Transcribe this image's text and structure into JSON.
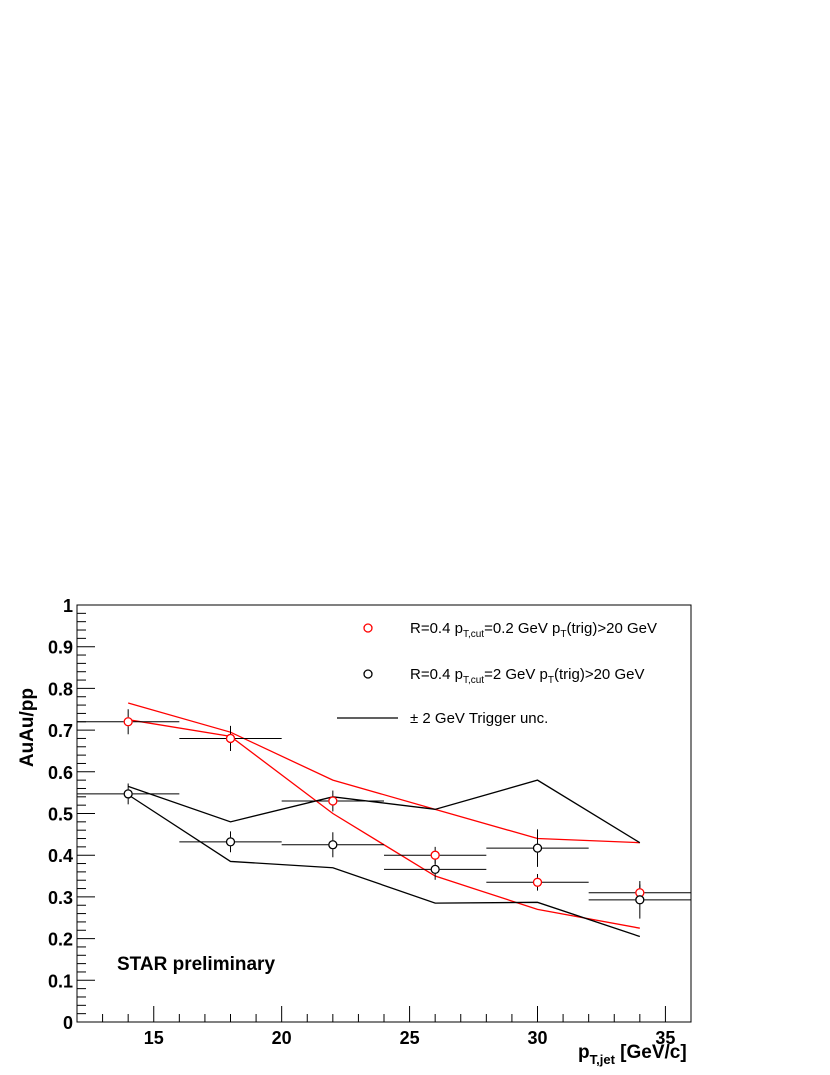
{
  "chart_data": {
    "type": "scatter",
    "xlabel": {
      "main": "p",
      "sub": "T,jet",
      "unit": " [GeV/c]"
    },
    "ylabel": "AuAu/pp",
    "xlim": [
      12,
      36
    ],
    "ylim": [
      0,
      1
    ],
    "x_tick_labels": [
      "15",
      "20",
      "25",
      "30",
      "35"
    ],
    "y_tick_labels": [
      "0",
      "0.1",
      "0.2",
      "0.3",
      "0.4",
      "0.5",
      "0.6",
      "0.7",
      "0.8",
      "0.9",
      "1"
    ],
    "annotation": "STAR preliminary",
    "legend": [
      {
        "marker": "circle",
        "color": "#ff0000",
        "parts": [
          "R=0.4 p",
          "T,cut",
          "=0.2 GeV p",
          "T",
          "(trig)>20 GeV"
        ]
      },
      {
        "marker": "circle",
        "color": "#000000",
        "parts": [
          "R=0.4 p",
          "T,cut",
          "=2 GeV p",
          "T",
          "(trig)>20 GeV"
        ]
      },
      {
        "marker": "line",
        "color": "#000000",
        "parts": [
          "± 2 GeV Trigger unc."
        ]
      }
    ],
    "series": [
      {
        "color": "#ff0000",
        "points": [
          {
            "x": 14,
            "y": 0.72,
            "xerr": 2,
            "yerr": 0.03
          },
          {
            "x": 18,
            "y": 0.68,
            "xerr": 2,
            "yerr": 0.03
          },
          {
            "x": 22,
            "y": 0.53,
            "xerr": 2,
            "yerr": 0.025
          },
          {
            "x": 26,
            "y": 0.4,
            "xerr": 2,
            "yerr": 0.02
          },
          {
            "x": 30,
            "y": 0.335,
            "xerr": 2,
            "yerr": 0.02
          },
          {
            "x": 34,
            "y": 0.31,
            "xerr": 2,
            "yerr": 0.02
          }
        ],
        "band_upper": [
          [
            14,
            0.765
          ],
          [
            18,
            0.695
          ],
          [
            22,
            0.58
          ],
          [
            26,
            0.51
          ],
          [
            30,
            0.44
          ],
          [
            34,
            0.43
          ]
        ],
        "band_lower": [
          [
            14,
            0.725
          ],
          [
            18,
            0.685
          ],
          [
            22,
            0.5
          ],
          [
            26,
            0.35
          ],
          [
            30,
            0.27
          ],
          [
            34,
            0.225
          ]
        ]
      },
      {
        "color": "#000000",
        "points": [
          {
            "x": 14,
            "y": 0.547,
            "xerr": 2,
            "yerr": 0.025
          },
          {
            "x": 18,
            "y": 0.432,
            "xerr": 2,
            "yerr": 0.025
          },
          {
            "x": 22,
            "y": 0.425,
            "xerr": 2,
            "yerr": 0.03
          },
          {
            "x": 26,
            "y": 0.366,
            "xerr": 2,
            "yerr": 0.025
          },
          {
            "x": 30,
            "y": 0.417,
            "xerr": 2,
            "yerr": 0.045
          },
          {
            "x": 34,
            "y": 0.293,
            "xerr": 2,
            "yerr": 0.045
          }
        ],
        "band_upper": [
          [
            14,
            0.565
          ],
          [
            18,
            0.48
          ],
          [
            22,
            0.54
          ],
          [
            26,
            0.51
          ],
          [
            30,
            0.58
          ],
          [
            34,
            0.43
          ]
        ],
        "band_lower": [
          [
            14,
            0.545
          ],
          [
            18,
            0.385
          ],
          [
            22,
            0.37
          ],
          [
            26,
            0.285
          ],
          [
            30,
            0.287
          ],
          [
            34,
            0.205
          ]
        ]
      }
    ]
  }
}
